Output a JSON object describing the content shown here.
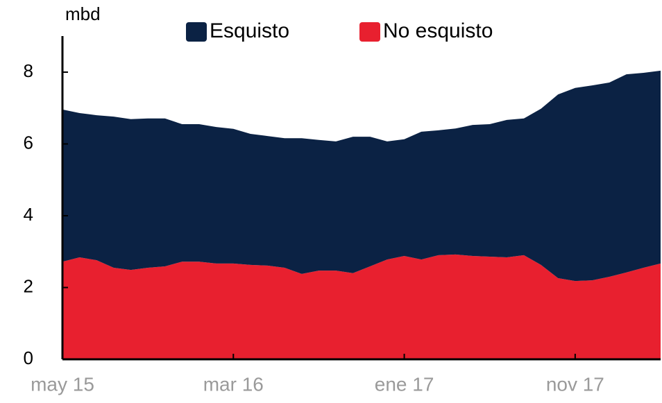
{
  "chart_data": {
    "type": "stacked_area",
    "y_label": "mbd",
    "categories": [
      "may 15",
      null,
      null,
      null,
      null,
      null,
      null,
      null,
      null,
      null,
      "mar 16",
      null,
      null,
      null,
      null,
      null,
      null,
      null,
      null,
      null,
      "ene 17",
      null,
      null,
      null,
      null,
      null,
      null,
      null,
      null,
      null,
      "nov 17",
      null,
      null,
      null,
      null,
      null
    ],
    "series": [
      {
        "name": "Esquisto",
        "color": "#0b2244",
        "values": [
          4.24,
          4.02,
          4.04,
          4.21,
          4.2,
          4.16,
          4.12,
          3.83,
          3.83,
          3.8,
          3.75,
          3.65,
          3.61,
          3.61,
          3.78,
          3.64,
          3.6,
          3.8,
          3.61,
          3.29,
          3.25,
          3.56,
          3.48,
          3.51,
          3.65,
          3.69,
          3.83,
          3.81,
          4.35,
          5.12,
          5.38,
          5.43,
          5.41,
          5.52,
          5.43,
          5.37
        ]
      },
      {
        "name": "No esquisto",
        "color": "#e8202f",
        "values": [
          2.72,
          2.84,
          2.76,
          2.55,
          2.49,
          2.55,
          2.59,
          2.72,
          2.72,
          2.67,
          2.67,
          2.63,
          2.61,
          2.55,
          2.38,
          2.47,
          2.47,
          2.4,
          2.59,
          2.78,
          2.88,
          2.78,
          2.9,
          2.92,
          2.88,
          2.86,
          2.84,
          2.9,
          2.63,
          2.26,
          2.18,
          2.2,
          2.3,
          2.42,
          2.55,
          2.67
        ]
      }
    ],
    "ylim": [
      0,
      8.08
    ],
    "yticks": [
      0,
      2,
      4,
      6,
      8
    ],
    "legend": "top",
    "grid": false
  }
}
